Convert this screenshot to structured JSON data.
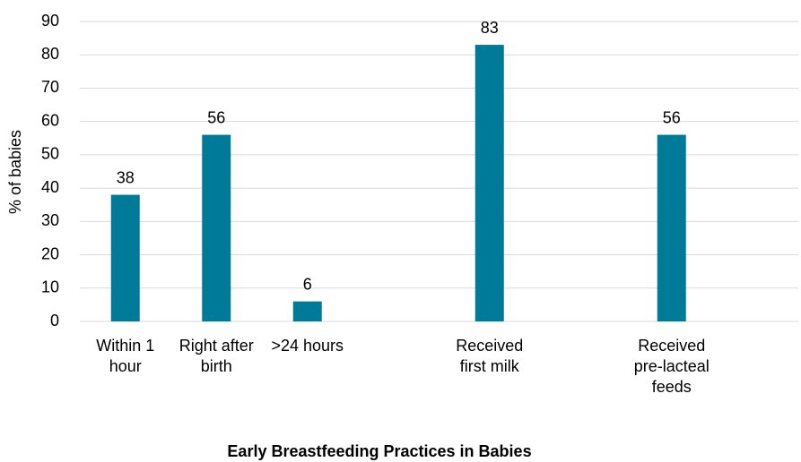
{
  "chart_data": {
    "type": "bar",
    "title": "Early Breastfeeding Practices in Babies",
    "y_label": "% of babies",
    "categories": [
      "Within 1 hour",
      "Right after birth",
      ">24 hours",
      null,
      "Received first milk",
      null,
      "Received pre-lacteal feeds"
    ],
    "values": [
      38,
      56,
      6,
      null,
      83,
      null,
      56
    ],
    "color": "#007a99",
    "ylim": [
      0,
      90
    ],
    "yticks": [
      0,
      10,
      20,
      30,
      40,
      50,
      60,
      70,
      80,
      90
    ],
    "grid": true
  }
}
